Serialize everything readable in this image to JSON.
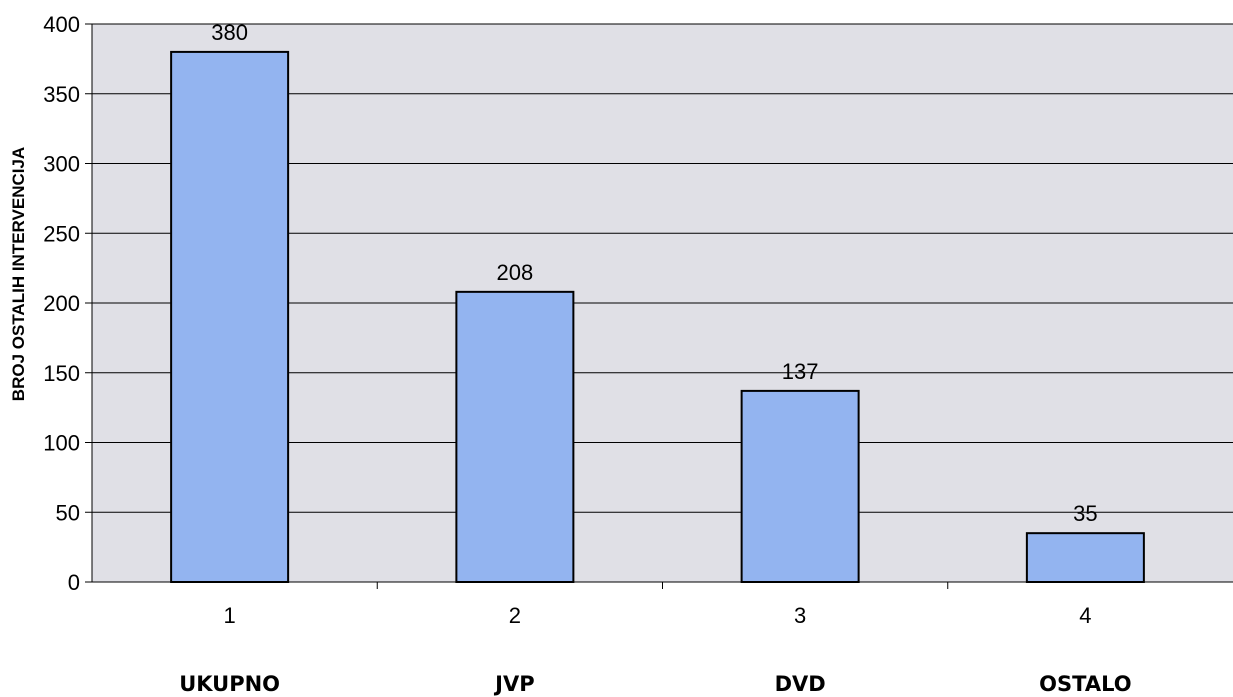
{
  "chart_data": {
    "type": "bar",
    "x": [
      "1",
      "2",
      "3",
      "4"
    ],
    "categories": [
      "UKUPNO",
      "JVP",
      "DVD",
      "OSTALO"
    ],
    "values": [
      380,
      208,
      137,
      35
    ],
    "data_labels": [
      "380",
      "208",
      "137",
      "35"
    ],
    "title": "",
    "xlabel": "",
    "ylabel": "BROJ OSTALIH INTERVENCIJA",
    "ylim": [
      0,
      400
    ],
    "yticks": [
      "0",
      "50",
      "100",
      "150",
      "200",
      "250",
      "300",
      "350",
      "400"
    ],
    "grid": true,
    "legend": "none",
    "colors": {
      "bar_fill": "#93B4F0",
      "bar_stroke": "#000000",
      "plot_bg": "#E0E0E6",
      "grid": "#000000"
    }
  }
}
